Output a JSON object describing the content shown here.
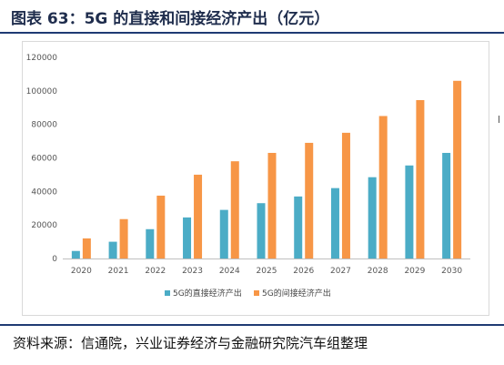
{
  "title": "图表 63：5G 的直接和间接经济产出（亿元）",
  "source": "资料来源：信通院，兴业证券经济与金融研究院汽车组整理",
  "colors": {
    "direct": "#4bacc6",
    "indirect": "#f79646",
    "accent": "#1f3b73"
  },
  "chart_data": {
    "type": "bar",
    "categories": [
      "2020",
      "2021",
      "2022",
      "2023",
      "2024",
      "2025",
      "2026",
      "2027",
      "2028",
      "2029",
      "2030"
    ],
    "series": [
      {
        "name": "5G的直接经济产出",
        "values": [
          4500,
          10000,
          17500,
          24500,
          29000,
          33000,
          37000,
          42000,
          48500,
          55500,
          63000
        ]
      },
      {
        "name": "5G的间接经济产出",
        "values": [
          12000,
          23500,
          37500,
          50000,
          58000,
          63000,
          69000,
          75000,
          85000,
          94500,
          106000
        ]
      }
    ],
    "ylim": [
      0,
      120000
    ],
    "yticks": [
      "0",
      "20000",
      "40000",
      "60000",
      "80000",
      "100000",
      "120000"
    ],
    "grid": false,
    "legend": "bottom"
  }
}
